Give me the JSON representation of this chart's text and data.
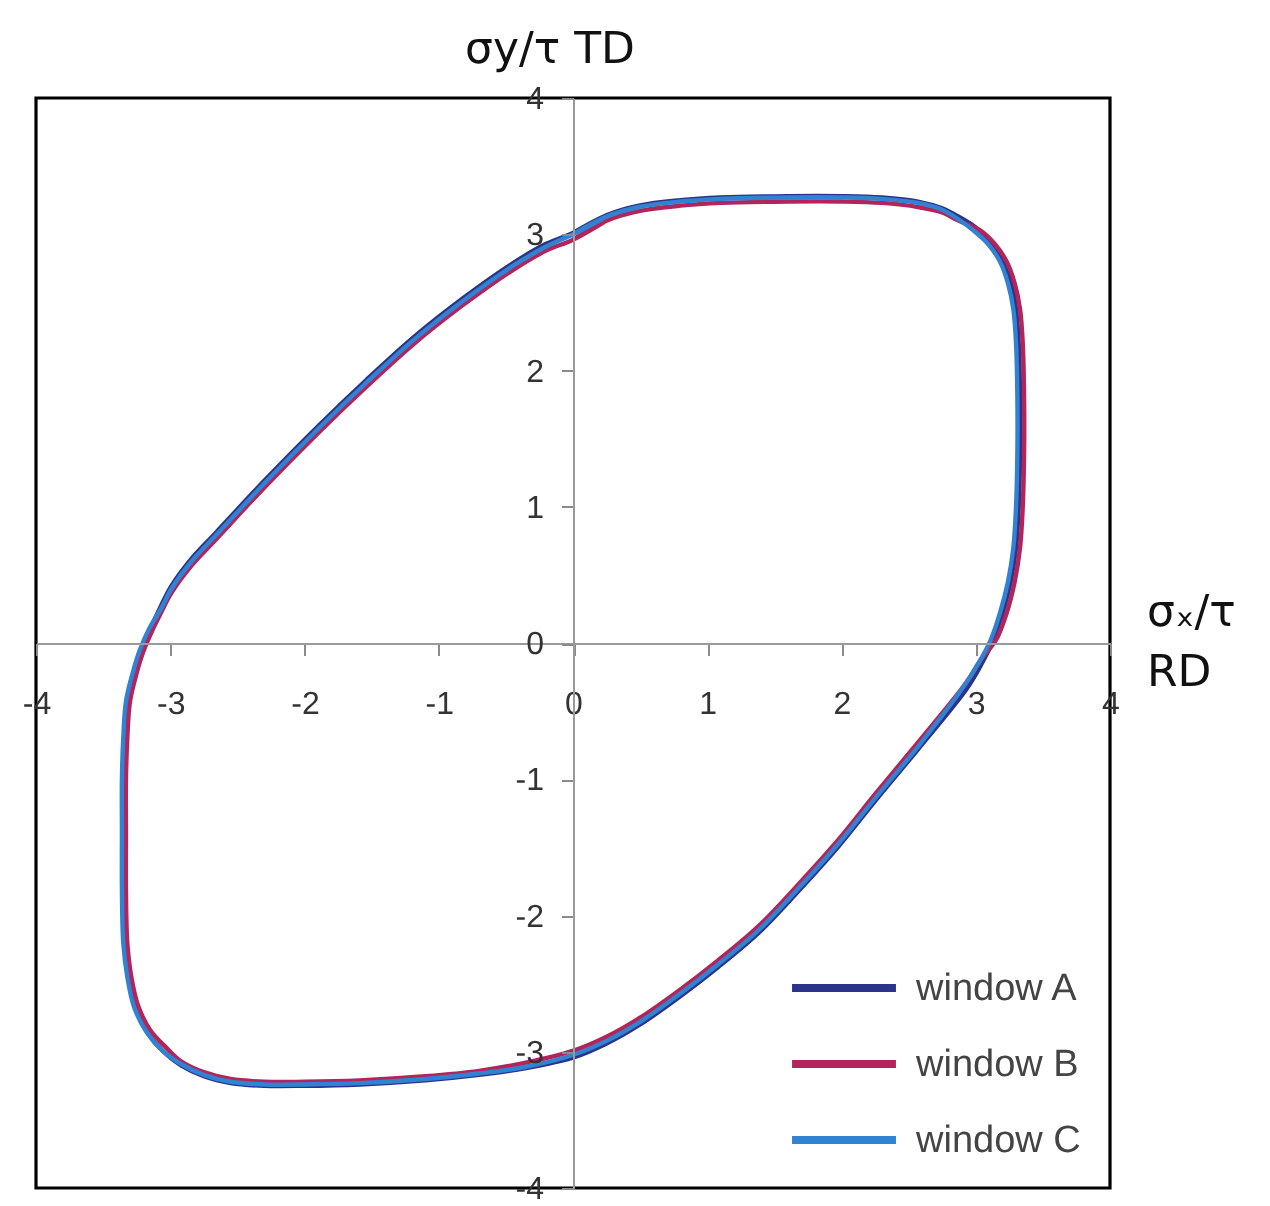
{
  "chart_data": {
    "type": "line",
    "xlabel": "σₓ/τ RD",
    "ylabel": "σy/τ TD",
    "xlim": [
      -4,
      4
    ],
    "ylim": [
      -4,
      4
    ],
    "xticks": [
      -4,
      -3,
      -2,
      -1,
      0,
      1,
      2,
      3,
      4
    ],
    "yticks": [
      -4,
      -3,
      -2,
      -1,
      0,
      1,
      2,
      3,
      4
    ],
    "legend": "bottom right",
    "series": [
      {
        "name": "window A",
        "color": "#2b3488",
        "x": [
          0.0,
          0.25,
          0.49,
          0.8,
          1.1,
          1.6,
          2.0,
          2.3,
          2.57,
          2.75,
          2.87,
          3.0,
          3.11,
          3.2,
          3.26,
          3.3,
          3.32,
          3.33,
          3.33,
          3.32,
          3.3,
          3.26,
          3.2,
          3.13,
          3.04,
          2.93,
          2.57,
          2.25,
          1.98,
          1.68,
          1.38,
          1.08,
          0.79,
          0.5,
          0.25,
          0.01,
          -0.35,
          -0.7,
          -1.1,
          -1.59,
          -2.0,
          -2.3,
          -2.55,
          -2.75,
          -2.92,
          -3.05,
          -3.17,
          -3.26,
          -3.31,
          -3.34,
          -3.35,
          -3.35,
          -3.35,
          -3.34,
          -3.32,
          -3.27,
          -3.22,
          -3.15,
          -3.07,
          -2.99,
          -2.84,
          -2.66,
          -2.3,
          -1.89,
          -1.54,
          -1.18,
          -0.82,
          -0.46,
          -0.2,
          0.0,
          0.25
        ],
        "values": [
          3.01,
          3.14,
          3.21,
          3.25,
          3.27,
          3.28,
          3.28,
          3.27,
          3.24,
          3.19,
          3.13,
          3.05,
          2.95,
          2.82,
          2.66,
          2.45,
          2.2,
          1.8,
          1.4,
          1.0,
          0.7,
          0.45,
          0.22,
          0.02,
          -0.16,
          -0.34,
          -0.78,
          -1.16,
          -1.49,
          -1.82,
          -2.13,
          -2.38,
          -2.6,
          -2.8,
          -2.94,
          -3.04,
          -3.12,
          -3.17,
          -3.21,
          -3.24,
          -3.25,
          -3.25,
          -3.23,
          -3.18,
          -3.1,
          -3.0,
          -2.86,
          -2.68,
          -2.45,
          -2.2,
          -1.8,
          -1.4,
          -1.0,
          -0.7,
          -0.43,
          -0.22,
          -0.06,
          0.1,
          0.27,
          0.42,
          0.62,
          0.81,
          1.19,
          1.6,
          1.93,
          2.25,
          2.53,
          2.78,
          2.93,
          3.01,
          3.14
        ]
      },
      {
        "name": "window B",
        "color": "#b3245a",
        "x": [
          0.0,
          0.25,
          0.49,
          0.8,
          1.1,
          1.6,
          2.0,
          2.3,
          2.57,
          2.75,
          2.87,
          3.03,
          3.14,
          3.23,
          3.29,
          3.33,
          3.35,
          3.36,
          3.36,
          3.35,
          3.33,
          3.29,
          3.23,
          3.15,
          3.04,
          2.93,
          2.57,
          2.25,
          1.98,
          1.68,
          1.38,
          1.08,
          0.79,
          0.5,
          0.25,
          0.01,
          -0.35,
          -0.7,
          -1.1,
          -1.59,
          -2.0,
          -2.3,
          -2.55,
          -2.75,
          -2.92,
          -3.03,
          -3.15,
          -3.24,
          -3.29,
          -3.32,
          -3.33,
          -3.33,
          -3.33,
          -3.32,
          -3.3,
          -3.25,
          -3.2,
          -3.13,
          -3.07,
          -2.99,
          -2.84,
          -2.66,
          -2.3,
          -1.89,
          -1.54,
          -1.18,
          -0.82,
          -0.46,
          -0.2,
          0.0,
          0.25
        ],
        "values": [
          2.96,
          3.1,
          3.17,
          3.21,
          3.23,
          3.24,
          3.24,
          3.23,
          3.2,
          3.16,
          3.1,
          3.03,
          2.93,
          2.8,
          2.64,
          2.45,
          2.2,
          1.8,
          1.4,
          1.0,
          0.7,
          0.45,
          0.22,
          0.02,
          -0.12,
          -0.29,
          -0.73,
          -1.11,
          -1.44,
          -1.77,
          -2.08,
          -2.33,
          -2.55,
          -2.75,
          -2.89,
          -2.99,
          -3.08,
          -3.14,
          -3.18,
          -3.21,
          -3.22,
          -3.22,
          -3.2,
          -3.15,
          -3.07,
          -2.97,
          -2.84,
          -2.66,
          -2.45,
          -2.2,
          -1.8,
          -1.4,
          -1.0,
          -0.7,
          -0.43,
          -0.22,
          -0.06,
          0.1,
          0.22,
          0.37,
          0.57,
          0.76,
          1.14,
          1.55,
          1.88,
          2.2,
          2.48,
          2.73,
          2.88,
          2.96,
          3.1
        ]
      },
      {
        "name": "window C",
        "color": "#3282d2",
        "x": [
          0.0,
          0.25,
          0.49,
          0.8,
          1.1,
          1.6,
          2.0,
          2.3,
          2.57,
          2.75,
          2.87,
          2.98,
          3.09,
          3.18,
          3.24,
          3.28,
          3.3,
          3.31,
          3.31,
          3.3,
          3.28,
          3.24,
          3.18,
          3.11,
          3.02,
          2.91,
          2.57,
          2.25,
          1.98,
          1.68,
          1.38,
          1.08,
          0.79,
          0.5,
          0.25,
          0.01,
          -0.35,
          -0.7,
          -1.1,
          -1.59,
          -2.0,
          -2.3,
          -2.55,
          -2.75,
          -2.92,
          -3.06,
          -3.18,
          -3.27,
          -3.32,
          -3.35,
          -3.36,
          -3.36,
          -3.36,
          -3.35,
          -3.33,
          -3.28,
          -3.23,
          -3.16,
          -3.07,
          -2.99,
          -2.84,
          -2.66,
          -2.3,
          -1.89,
          -1.54,
          -1.18,
          -0.82,
          -0.46,
          -0.2,
          0.0,
          0.25
        ],
        "values": [
          3.0,
          3.13,
          3.2,
          3.24,
          3.26,
          3.27,
          3.27,
          3.26,
          3.23,
          3.18,
          3.11,
          3.03,
          2.93,
          2.8,
          2.64,
          2.45,
          2.2,
          1.8,
          1.4,
          1.0,
          0.7,
          0.45,
          0.22,
          0.02,
          -0.15,
          -0.32,
          -0.76,
          -1.14,
          -1.47,
          -1.8,
          -2.11,
          -2.36,
          -2.58,
          -2.78,
          -2.92,
          -3.02,
          -3.11,
          -3.16,
          -3.2,
          -3.23,
          -3.24,
          -3.24,
          -3.22,
          -3.17,
          -3.09,
          -2.99,
          -2.85,
          -2.67,
          -2.45,
          -2.2,
          -1.8,
          -1.4,
          -1.0,
          -0.7,
          -0.43,
          -0.22,
          -0.06,
          0.1,
          0.25,
          0.4,
          0.6,
          0.79,
          1.17,
          1.58,
          1.91,
          2.23,
          2.51,
          2.76,
          2.91,
          3.0,
          3.13
        ]
      }
    ]
  }
}
